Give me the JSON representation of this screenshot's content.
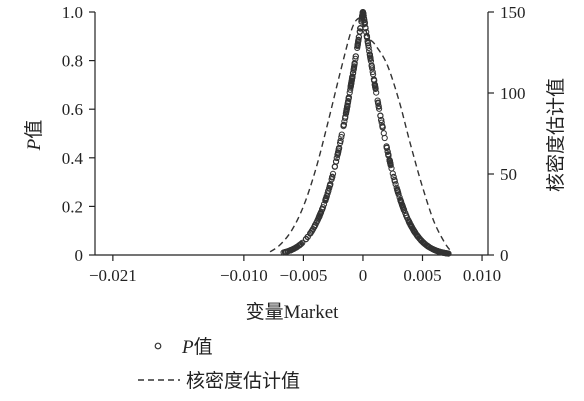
{
  "chart_data": {
    "type": "scatter",
    "xlabel": "变量Market",
    "ylabel_left_italic": "P",
    "ylabel_left_rest": "值",
    "ylabel_right": "核密度估计值",
    "x_ticks": [
      "−0.021",
      "−0.010",
      "−0.005",
      "0",
      "0.005",
      "0.010"
    ],
    "x_tick_values": [
      -0.021,
      -0.01,
      -0.005,
      0,
      0.005,
      0.01
    ],
    "xlim": [
      -0.0225,
      0.0105
    ],
    "y_left_ticks": [
      "0",
      "0.2",
      "0.4",
      "0.6",
      "0.8",
      "1.0"
    ],
    "y_left_tick_values": [
      0,
      0.2,
      0.4,
      0.6,
      0.8,
      1.0
    ],
    "ylim_left": [
      0,
      1.0
    ],
    "y_right_ticks": [
      "0",
      "50",
      "100",
      "150"
    ],
    "y_right_tick_values": [
      0,
      50,
      100,
      150
    ],
    "ylim_right": [
      0,
      150
    ],
    "legend": [
      {
        "marker": "circle",
        "label_italic": "P",
        "label_rest": "值"
      },
      {
        "marker": "dash",
        "label": "核密度估计值"
      }
    ],
    "series": [
      {
        "name": "P值",
        "axis": "left",
        "style": "hollow-circle",
        "x_range": [
          -0.0068,
          0.0072
        ],
        "shape": "two-sided p-value: 1 at x=0, decaying toward ~0.01 at the tails"
      },
      {
        "name": "核密度估计值",
        "axis": "right",
        "style": "dashed-line",
        "x": [
          -0.0078,
          -0.007,
          -0.006,
          -0.005,
          -0.004,
          -0.003,
          -0.002,
          -0.001,
          -0.0004,
          0.0,
          0.0005,
          0.001,
          0.002,
          0.003,
          0.004,
          0.005,
          0.006,
          0.007,
          0.0075
        ],
        "y": [
          2,
          6,
          15,
          30,
          52,
          80,
          110,
          138,
          146,
          143,
          134,
          130,
          118,
          96,
          68,
          42,
          20,
          6,
          2
        ]
      }
    ]
  }
}
